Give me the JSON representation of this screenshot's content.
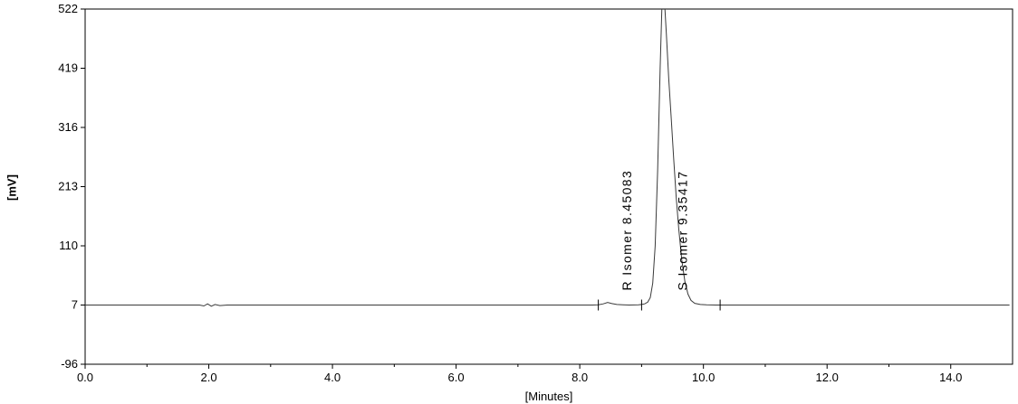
{
  "chart_data": {
    "type": "line",
    "title": "",
    "xlabel": "[Minutes]",
    "ylabel": "[mV]",
    "xlim": [
      0.0,
      15.0
    ],
    "ylim": [
      -96,
      522
    ],
    "xtick_values": [
      0,
      2,
      4,
      6,
      8,
      10,
      12,
      14
    ],
    "xtick_labels": [
      "0.0",
      "2.0",
      "4.0",
      "6.0",
      "8.0",
      "10.0",
      "12.0",
      "14.0"
    ],
    "yticks": [
      522,
      419,
      316,
      213,
      110,
      7,
      -96
    ],
    "grid": false,
    "legend": "none",
    "background": "#ffffff",
    "line_color": "#3a3a3a",
    "axis_color": "#000000",
    "baseline_mv": 7,
    "peaks": [
      {
        "name": "R Isomer",
        "retention_time": 8.45083,
        "label": "R Isomer  8.45083"
      },
      {
        "name": "S Isomer",
        "retention_time": 9.35417,
        "label": "S Isomer  9.35417"
      }
    ],
    "integration_marks": [
      8.3,
      9.0,
      10.27
    ],
    "trace": [
      [
        0.0,
        7
      ],
      [
        0.5,
        7
      ],
      [
        1.0,
        7
      ],
      [
        1.5,
        7
      ],
      [
        1.85,
        7
      ],
      [
        1.92,
        5.5
      ],
      [
        1.98,
        9
      ],
      [
        2.04,
        5
      ],
      [
        2.1,
        8
      ],
      [
        2.18,
        6
      ],
      [
        2.3,
        7
      ],
      [
        3.0,
        7
      ],
      [
        4.0,
        7
      ],
      [
        5.0,
        7
      ],
      [
        6.0,
        7
      ],
      [
        7.0,
        7
      ],
      [
        8.0,
        7
      ],
      [
        8.2,
        7
      ],
      [
        8.3,
        7.5
      ],
      [
        8.38,
        9
      ],
      [
        8.45,
        11.5
      ],
      [
        8.52,
        9.5
      ],
      [
        8.6,
        8
      ],
      [
        8.7,
        7.5
      ],
      [
        8.8,
        7
      ],
      [
        8.95,
        7.5
      ],
      [
        9.0,
        8
      ],
      [
        9.05,
        9
      ],
      [
        9.1,
        12
      ],
      [
        9.14,
        20
      ],
      [
        9.18,
        45
      ],
      [
        9.22,
        110
      ],
      [
        9.26,
        240
      ],
      [
        9.3,
        420
      ],
      [
        9.33,
        530
      ],
      [
        9.35,
        555
      ],
      [
        9.37,
        535
      ],
      [
        9.4,
        480
      ],
      [
        9.44,
        400
      ],
      [
        9.48,
        330
      ],
      [
        9.52,
        260
      ],
      [
        9.56,
        195
      ],
      [
        9.6,
        140
      ],
      [
        9.65,
        85
      ],
      [
        9.7,
        48
      ],
      [
        9.75,
        26
      ],
      [
        9.8,
        15
      ],
      [
        9.86,
        10
      ],
      [
        9.95,
        8
      ],
      [
        10.05,
        7.3
      ],
      [
        10.2,
        7
      ],
      [
        11.0,
        7
      ],
      [
        12.0,
        7
      ],
      [
        13.0,
        7
      ],
      [
        14.0,
        7
      ],
      [
        14.95,
        7
      ]
    ]
  }
}
